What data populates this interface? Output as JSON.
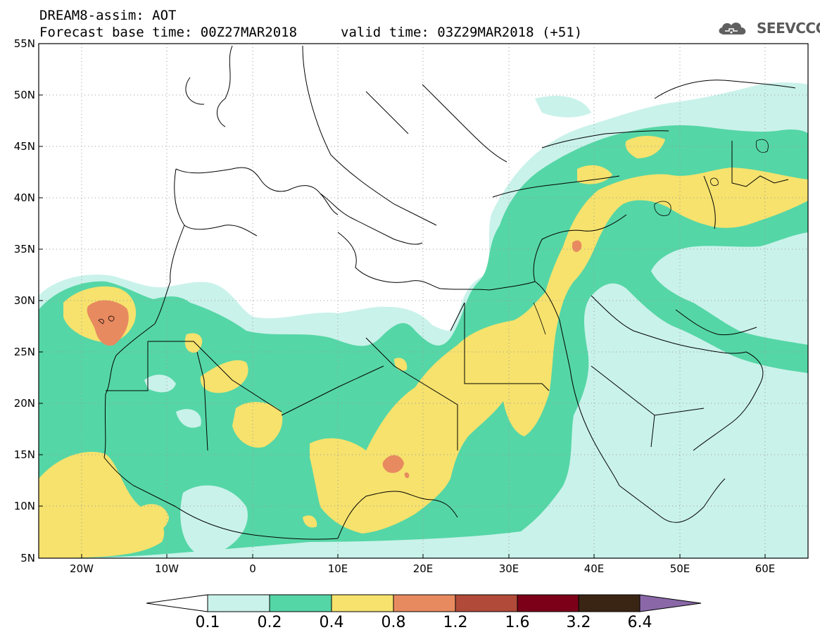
{
  "header": {
    "title_line1": "DREAM8-assim: AOT",
    "title_line2": "Forecast base time: 00Z27MAR2018",
    "valid_time": "valid time: 03Z29MAR2018 (+51)",
    "logo_text": "SEEVCCC",
    "logo_icon": "cloud-icon"
  },
  "map": {
    "lat_labels": [
      "55N",
      "50N",
      "45N",
      "40N",
      "35N",
      "30N",
      "25N",
      "20N",
      "15N",
      "10N",
      "5N"
    ],
    "lon_labels": [
      "20W",
      "10W",
      "0",
      "10E",
      "20E",
      "30E",
      "40E",
      "50E",
      "60E"
    ],
    "lat_range": [
      5,
      55
    ],
    "lon_range": [
      -25,
      65
    ],
    "grid": "dotted"
  },
  "colorbar": {
    "labels": [
      "0.1",
      "0.2",
      "0.4",
      "0.8",
      "1.2",
      "1.6",
      "3.2",
      "6.4"
    ],
    "colors": [
      "#ffffff",
      "#c9f2ea",
      "#55d6a6",
      "#f6e26d",
      "#e88a60",
      "#b14a38",
      "#7b0018",
      "#3a2414",
      "#8a68a8"
    ]
  },
  "colors": {
    "very_light": "#c9f2ea",
    "green": "#55d6a6",
    "yellow": "#f6e26d",
    "orange": "#e88a60"
  }
}
